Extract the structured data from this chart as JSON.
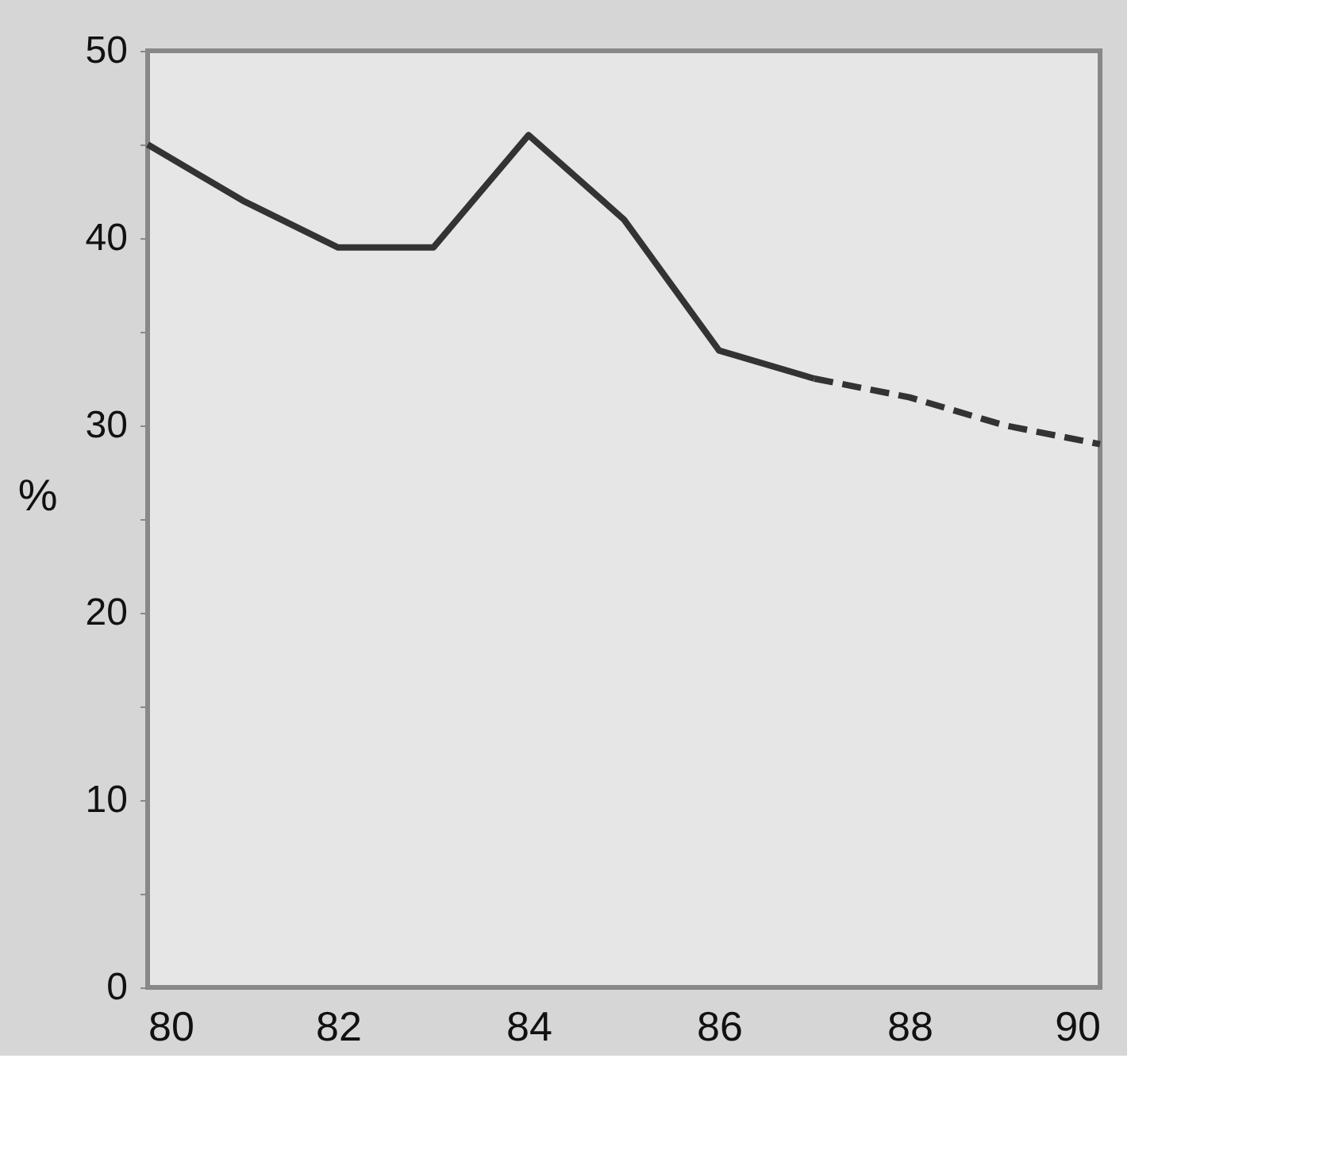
{
  "chart_data": {
    "type": "line",
    "ylabel": "%",
    "x": [
      80,
      81,
      82,
      83,
      84,
      85,
      86,
      87,
      88,
      89,
      90
    ],
    "series": [
      {
        "color": "#333333",
        "line_style": "solid",
        "values": [
          45,
          42,
          39.5,
          39.5,
          45.5,
          41,
          34,
          32.5,
          null,
          null,
          null
        ]
      },
      {
        "color": "#333333",
        "line_style": "dashed",
        "values": [
          null,
          null,
          null,
          null,
          null,
          null,
          null,
          32.5,
          31.5,
          30,
          29
        ]
      }
    ],
    "xlim": [
      80,
      90
    ],
    "xticks": [
      80,
      82,
      84,
      86,
      88,
      90
    ],
    "ylim": [
      0,
      50
    ],
    "yticks": [
      0,
      {
        "value": 5,
        "label": null
      },
      10,
      {
        "value": 15,
        "label": null
      },
      20,
      {
        "value": 25,
        "label": null
      },
      30,
      {
        "value": 35,
        "label": null
      },
      40,
      {
        "value": 45,
        "label": null
      },
      50
    ],
    "grid": false,
    "marker": "none"
  }
}
